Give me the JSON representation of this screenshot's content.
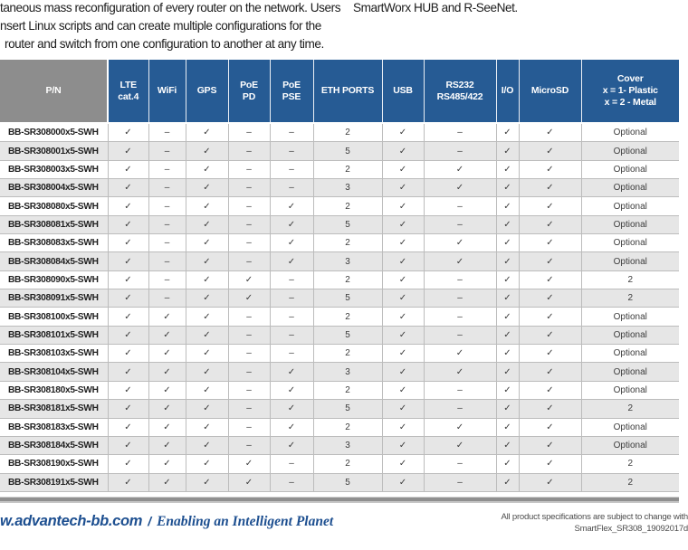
{
  "colors": {
    "header_blue": "#265B94",
    "header_gray": "#8D8D8D",
    "row_alt_gray": "#E6E6E6",
    "footer_blue": "#1D4F90"
  },
  "intro": {
    "left_lines": [
      "taneous mass reconfiguration of every router on the network. Users",
      "nsert Linux scripts and can create multiple configurations for the",
      "router and switch from one configuration to another at any time."
    ],
    "right_line": "SmartWorx HUB and R-SeeNet."
  },
  "table": {
    "pn_label": "P/N",
    "columns": [
      {
        "lines": [
          "LTE",
          "cat.4"
        ]
      },
      {
        "lines": [
          "WiFi"
        ]
      },
      {
        "lines": [
          "GPS"
        ]
      },
      {
        "lines": [
          "PoE",
          "PD"
        ]
      },
      {
        "lines": [
          "PoE",
          "PSE"
        ]
      },
      {
        "lines": [
          "ETH PORTS"
        ]
      },
      {
        "lines": [
          "USB"
        ]
      },
      {
        "lines": [
          "RS232",
          "RS485/422"
        ]
      },
      {
        "lines": [
          "I/O"
        ]
      },
      {
        "lines": [
          "MicroSD"
        ]
      },
      {
        "lines": [
          "Cover",
          "x = 1- Plastic",
          "x = 2 - Metal"
        ]
      }
    ],
    "glyphs": {
      "check": "✓",
      "dash": "–"
    },
    "rows": [
      {
        "pn": "BB-SR308000x5-SWH",
        "features": [
          "✓",
          "–",
          "✓",
          "–",
          "–",
          "2",
          "✓",
          "–",
          "✓",
          "✓",
          "Optional"
        ]
      },
      {
        "pn": "BB-SR308001x5-SWH",
        "features": [
          "✓",
          "–",
          "✓",
          "–",
          "–",
          "5",
          "✓",
          "–",
          "✓",
          "✓",
          "Optional"
        ]
      },
      {
        "pn": "BB-SR308003x5-SWH",
        "features": [
          "✓",
          "–",
          "✓",
          "–",
          "–",
          "2",
          "✓",
          "✓",
          "✓",
          "✓",
          "Optional"
        ]
      },
      {
        "pn": "BB-SR308004x5-SWH",
        "features": [
          "✓",
          "–",
          "✓",
          "–",
          "–",
          "3",
          "✓",
          "✓",
          "✓",
          "✓",
          "Optional"
        ]
      },
      {
        "pn": "BB-SR308080x5-SWH",
        "features": [
          "✓",
          "–",
          "✓",
          "–",
          "✓",
          "2",
          "✓",
          "–",
          "✓",
          "✓",
          "Optional"
        ]
      },
      {
        "pn": "BB-SR308081x5-SWH",
        "features": [
          "✓",
          "–",
          "✓",
          "–",
          "✓",
          "5",
          "✓",
          "–",
          "✓",
          "✓",
          "Optional"
        ]
      },
      {
        "pn": "BB-SR308083x5-SWH",
        "features": [
          "✓",
          "–",
          "✓",
          "–",
          "✓",
          "2",
          "✓",
          "✓",
          "✓",
          "✓",
          "Optional"
        ]
      },
      {
        "pn": "BB-SR308084x5-SWH",
        "features": [
          "✓",
          "–",
          "✓",
          "–",
          "✓",
          "3",
          "✓",
          "✓",
          "✓",
          "✓",
          "Optional"
        ]
      },
      {
        "pn": "BB-SR308090x5-SWH",
        "features": [
          "✓",
          "–",
          "✓",
          "✓",
          "–",
          "2",
          "✓",
          "–",
          "✓",
          "✓",
          "2"
        ]
      },
      {
        "pn": "BB-SR308091x5-SWH",
        "features": [
          "✓",
          "–",
          "✓",
          "✓",
          "–",
          "5",
          "✓",
          "–",
          "✓",
          "✓",
          "2"
        ]
      },
      {
        "pn": "BB-SR308100x5-SWH",
        "features": [
          "✓",
          "✓",
          "✓",
          "–",
          "–",
          "2",
          "✓",
          "–",
          "✓",
          "✓",
          "Optional"
        ]
      },
      {
        "pn": "BB-SR308101x5-SWH",
        "features": [
          "✓",
          "✓",
          "✓",
          "–",
          "–",
          "5",
          "✓",
          "–",
          "✓",
          "✓",
          "Optional"
        ]
      },
      {
        "pn": "BB-SR308103x5-SWH",
        "features": [
          "✓",
          "✓",
          "✓",
          "–",
          "–",
          "2",
          "✓",
          "✓",
          "✓",
          "✓",
          "Optional"
        ]
      },
      {
        "pn": "BB-SR308104x5-SWH",
        "features": [
          "✓",
          "✓",
          "✓",
          "–",
          "✓",
          "3",
          "✓",
          "✓",
          "✓",
          "✓",
          "Optional"
        ]
      },
      {
        "pn": "BB-SR308180x5-SWH",
        "features": [
          "✓",
          "✓",
          "✓",
          "–",
          "✓",
          "2",
          "✓",
          "–",
          "✓",
          "✓",
          "Optional"
        ]
      },
      {
        "pn": "BB-SR308181x5-SWH",
        "features": [
          "✓",
          "✓",
          "✓",
          "–",
          "✓",
          "5",
          "✓",
          "–",
          "✓",
          "✓",
          "2"
        ]
      },
      {
        "pn": "BB-SR308183x5-SWH",
        "features": [
          "✓",
          "✓",
          "✓",
          "–",
          "✓",
          "2",
          "✓",
          "✓",
          "✓",
          "✓",
          "Optional"
        ]
      },
      {
        "pn": "BB-SR308184x5-SWH",
        "features": [
          "✓",
          "✓",
          "✓",
          "–",
          "✓",
          "3",
          "✓",
          "✓",
          "✓",
          "✓",
          "Optional"
        ]
      },
      {
        "pn": "BB-SR308190x5-SWH",
        "features": [
          "✓",
          "✓",
          "✓",
          "✓",
          "–",
          "2",
          "✓",
          "–",
          "✓",
          "✓",
          "2"
        ]
      },
      {
        "pn": "BB-SR308191x5-SWH",
        "features": [
          "✓",
          "✓",
          "✓",
          "✓",
          "–",
          "5",
          "✓",
          "–",
          "✓",
          "✓",
          "2"
        ]
      }
    ]
  },
  "footer": {
    "url": "w.advantech-bb.com",
    "separator": "/",
    "tagline": "Enabling an Intelligent Planet",
    "note_line1": "All product specifications are subject to change with",
    "note_line2": "SmartFlex_SR308_19092017d"
  }
}
